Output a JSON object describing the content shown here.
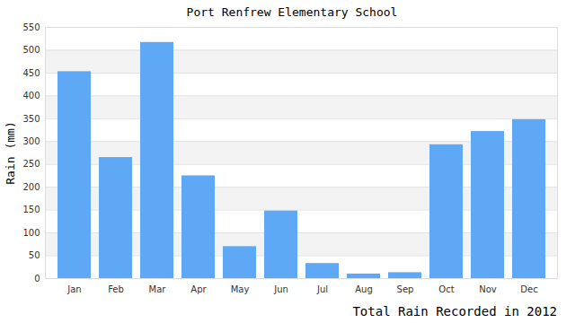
{
  "chart_data": {
    "type": "bar",
    "title": "Port Renfrew Elementary School",
    "caption": "Total Rain Recorded in 2012",
    "y_label": "Rain (mm)",
    "categories": [
      "Jan",
      "Feb",
      "Mar",
      "Apr",
      "May",
      "Jun",
      "Jul",
      "Aug",
      "Sep",
      "Oct",
      "Nov",
      "Dec"
    ],
    "values": [
      453,
      265,
      517,
      225,
      70,
      148,
      33,
      10,
      13,
      293,
      322,
      348
    ],
    "color": "#5fa8f5",
    "ylim": [
      0,
      550
    ],
    "yticks": [
      0,
      50,
      100,
      150,
      200,
      250,
      300,
      350,
      400,
      450,
      500,
      550
    ],
    "grid": true
  }
}
